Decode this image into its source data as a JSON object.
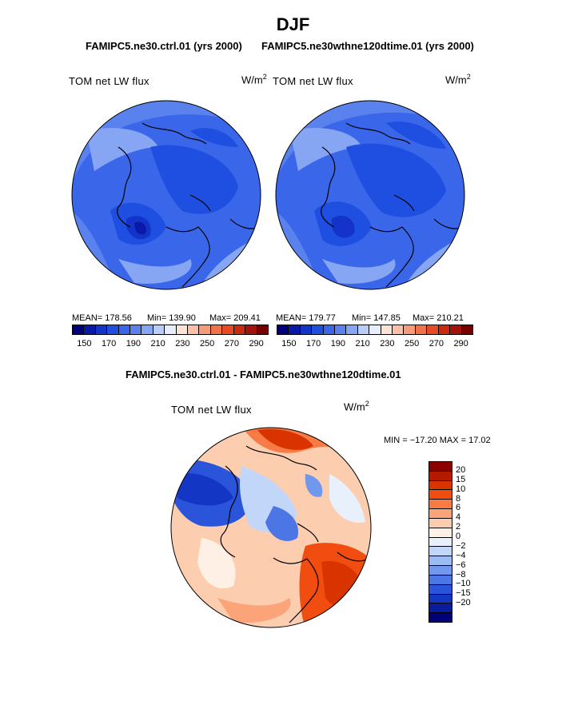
{
  "title": "DJF",
  "top_subtitle_left": "FAMIPC5.ne30.ctrl.01 (yrs 2000)",
  "top_subtitle_right": "FAMIPC5.ne30wthne120dtime.01 (yrs 2000)",
  "panel_left": {
    "variable": "TOM net LW flux",
    "units_base": "W/m",
    "units_exp": "2",
    "mean_label": "MEAN= 178.56",
    "min_label": "Min= 139.90",
    "max_label": "Max= 209.41"
  },
  "panel_right": {
    "variable": "TOM net LW flux",
    "units_base": "W/m",
    "units_exp": "2",
    "mean_label": "MEAN= 179.77",
    "min_label": "Min= 147.85",
    "max_label": "Max= 210.21"
  },
  "abs_colorbar": {
    "colors": [
      "#00007a",
      "#0a1aa8",
      "#1433c8",
      "#1f4fe0",
      "#3a66ea",
      "#5a82ee",
      "#86a6f4",
      "#b8cdf8",
      "#e6eefc",
      "#fde3d6",
      "#fbc0a6",
      "#f79a78",
      "#f2714b",
      "#e84b22",
      "#cc2a0e",
      "#a5120a",
      "#7a0000"
    ],
    "tick_labels": [
      "150",
      "170",
      "190",
      "210",
      "230",
      "250",
      "270",
      "290"
    ]
  },
  "diff_subtitle": "FAMIPC5.ne30.ctrl.01 - FAMIPC5.ne30wthne120dtime.01",
  "panel_diff": {
    "variable": "TOM net LW flux",
    "units_base": "W/m",
    "units_exp": "2",
    "minmax_label": "MIN = −17.20 MAX =   17.02"
  },
  "diff_colorbar": {
    "colors_top_to_bottom": [
      "#8c0000",
      "#b31a00",
      "#d93300",
      "#f24d10",
      "#f87a45",
      "#fba47a",
      "#fdcdb0",
      "#fff0e6",
      "#e8f0fc",
      "#c2d6fa",
      "#9bbbf5",
      "#7298ee",
      "#4c76e6",
      "#2a55da",
      "#1336c4",
      "#0a1c9e",
      "#000078"
    ],
    "labels": [
      "20",
      "15",
      "10",
      "8",
      "6",
      "4",
      "2",
      "0",
      "−2",
      "−4",
      "−6",
      "−8",
      "−10",
      "−15",
      "−20"
    ]
  }
}
